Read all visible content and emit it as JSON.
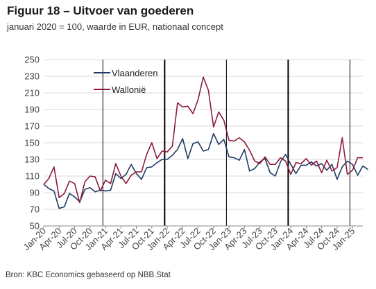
{
  "title": "Figuur 18 – Uitvoer van goederen",
  "subtitle": "januari 2020 = 100, waarde in EUR, nationaal concept",
  "source": "Bron: KBC Economics gebaseerd op NBB.Stat",
  "chart_data": {
    "type": "line",
    "title": "Figuur 18 – Uitvoer van goederen",
    "subtitle": "januari 2020 = 100, waarde in EUR, nationaal concept",
    "ylim": [
      50,
      250
    ],
    "yticks": [
      50,
      70,
      90,
      110,
      130,
      150,
      170,
      190,
      210,
      230,
      250
    ],
    "grid": "horizontal",
    "legend": "top-left",
    "x_start": "Jan-20",
    "x_labels": [
      {
        "label": "Jan-20",
        "index": 0
      },
      {
        "label": "Apr-20",
        "index": 3
      },
      {
        "label": "Jul-20",
        "index": 6
      },
      {
        "label": "Oct-20",
        "index": 9
      },
      {
        "label": "Jan-21",
        "index": 12
      },
      {
        "label": "Apr-21",
        "index": 15
      },
      {
        "label": "Jul-21",
        "index": 18
      },
      {
        "label": "Oct-21",
        "index": 21
      },
      {
        "label": "Jan-22",
        "index": 24
      },
      {
        "label": "Apr-22",
        "index": 27
      },
      {
        "label": "Jul-22",
        "index": 30
      },
      {
        "label": "Oct-22",
        "index": 33
      },
      {
        "label": "Jan-23",
        "index": 36
      },
      {
        "label": "Apr-23",
        "index": 39
      },
      {
        "label": "Jul-23",
        "index": 42
      },
      {
        "label": "Oct-23",
        "index": 45
      },
      {
        "label": "Jan-24",
        "index": 48
      },
      {
        "label": "Apr-24",
        "index": 51
      },
      {
        "label": "Jul-24",
        "index": 54
      },
      {
        "label": "Oct-24",
        "index": 57
      },
      {
        "label": "Jan-25",
        "index": 60
      }
    ],
    "year_separators": [
      {
        "index": 11.5,
        "bold": false
      },
      {
        "index": 23.5,
        "bold": true
      },
      {
        "index": 35.5,
        "bold": false
      },
      {
        "index": 47.5,
        "bold": true
      },
      {
        "index": 59.5,
        "bold": false
      }
    ],
    "series": [
      {
        "name": "Vlaanderen",
        "color": "#1f3b63",
        "values": [
          100,
          95,
          92,
          71,
          73,
          89,
          85,
          79,
          94,
          96,
          91,
          93,
          92,
          93,
          113,
          107,
          112,
          124,
          113,
          106,
          120,
          121,
          126,
          130,
          130,
          135,
          142,
          155,
          131,
          149,
          151,
          140,
          142,
          161,
          148,
          154,
          133,
          132,
          129,
          142,
          116,
          119,
          127,
          131,
          114,
          110,
          127,
          136,
          124,
          113,
          123,
          123,
          127,
          122,
          125,
          117,
          124,
          106,
          121,
          128,
          124,
          111,
          122,
          118
        ]
      },
      {
        "name": "Wallonië",
        "color": "#8b1a3a",
        "values": [
          100,
          107,
          121,
          84,
          89,
          104,
          101,
          78,
          103,
          110,
          109,
          92,
          105,
          101,
          125,
          110,
          101,
          111,
          115,
          115,
          136,
          150,
          131,
          140,
          139,
          146,
          198,
          193,
          194,
          185,
          202,
          229,
          213,
          169,
          187,
          177,
          153,
          152,
          156,
          151,
          141,
          128,
          125,
          133,
          124,
          124,
          132,
          128,
          112,
          126,
          125,
          131,
          123,
          128,
          114,
          129,
          116,
          120,
          156,
          112,
          117,
          132,
          132
        ]
      }
    ]
  }
}
